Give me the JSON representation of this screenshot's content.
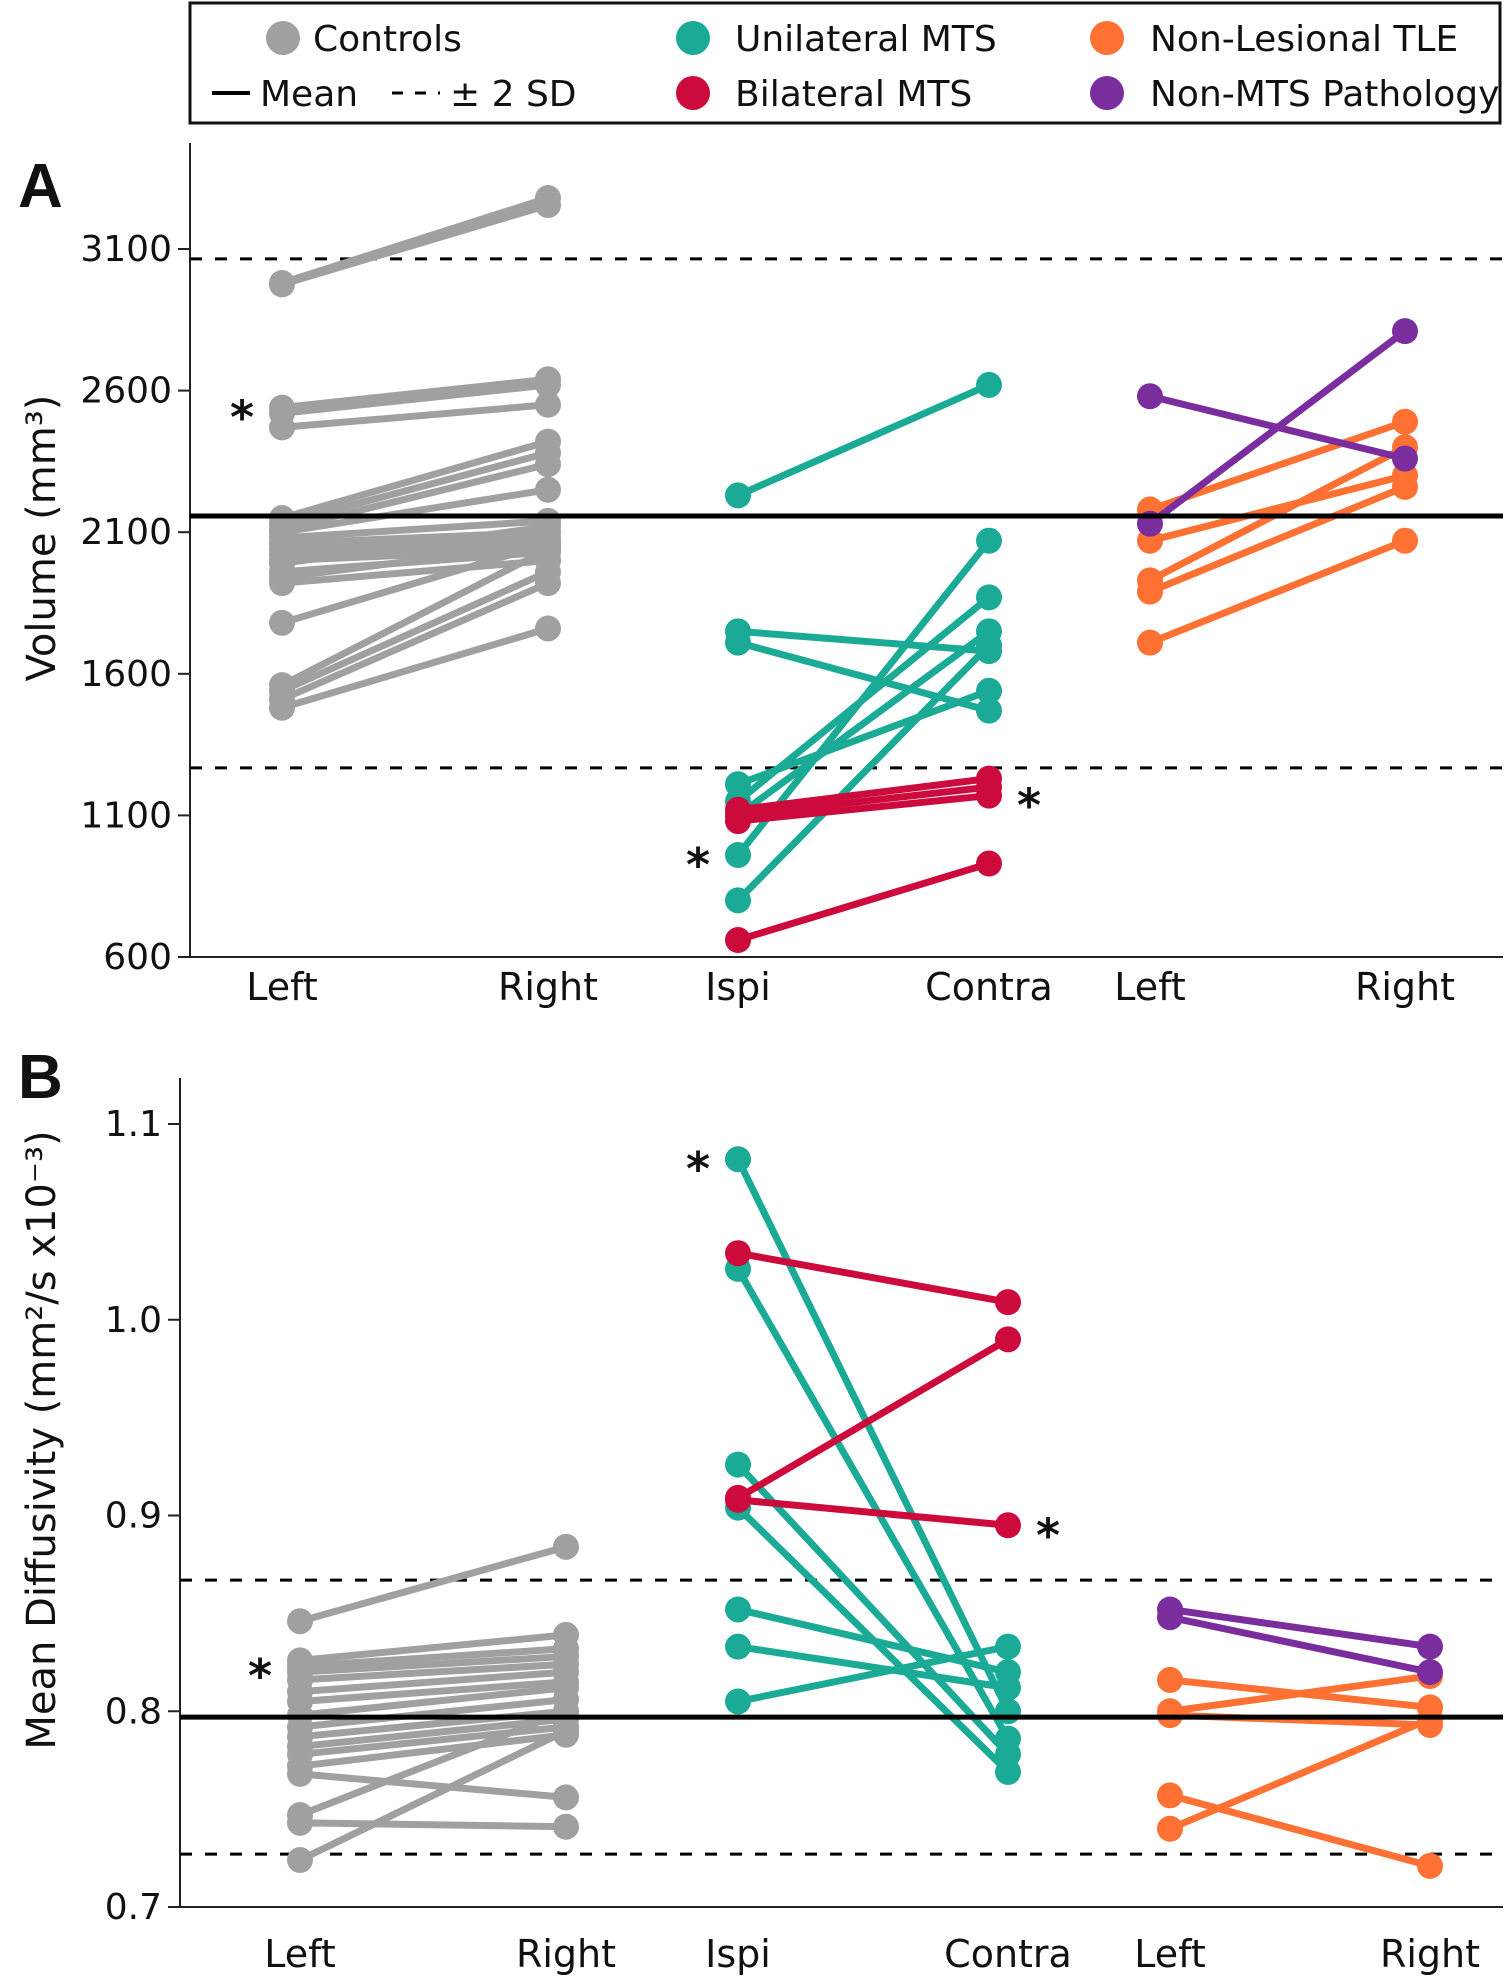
{
  "legend": {
    "items": [
      {
        "key": "controls",
        "label": "Controls",
        "color": "#a0a0a0",
        "symbol": "dot"
      },
      {
        "key": "unilateral",
        "label": "Unilateral MTS",
        "color": "#1aaa96",
        "symbol": "dot"
      },
      {
        "key": "nonlesional",
        "label": "Non-Lesional TLE",
        "color": "#ff7033",
        "symbol": "dot"
      },
      {
        "key": "mean",
        "label": "Mean",
        "color": "#000000",
        "symbol": "solid-line"
      },
      {
        "key": "sd",
        "label": "± 2 SD",
        "color": "#000000",
        "symbol": "dashed-line"
      },
      {
        "key": "bilateral",
        "label": "Bilateral MTS",
        "color": "#cc0a3c",
        "symbol": "dot"
      },
      {
        "key": "nonmts",
        "label": "Non-MTS Pathology",
        "color": "#7a2e9e",
        "symbol": "dot"
      }
    ]
  },
  "chart_data": [
    {
      "panel": "A",
      "type": "line",
      "ylabel": "Volume (mm³)",
      "ylim": [
        600,
        3450
      ],
      "yticks": [
        "600",
        "1100",
        "1600",
        "2100",
        "2600",
        "3100"
      ],
      "categories": [
        "Left",
        "Right",
        "Ispi",
        "Contra",
        "Left",
        "Right"
      ],
      "mean": 2157,
      "sd_lines": [
        3065,
        1268
      ],
      "groups": [
        {
          "name": "Controls",
          "color": "#a0a0a0",
          "x": [
            0,
            1
          ],
          "pairs": [
            [
              2980,
              3280
            ],
            [
              2975,
              3255
            ],
            [
              2540,
              2640
            ],
            [
              2520,
              2620
            ],
            [
              2470,
              2550
            ],
            [
              2150,
              2420
            ],
            [
              2130,
              2380
            ],
            [
              2110,
              2340
            ],
            [
              2100,
              2250
            ],
            [
              2080,
              2140
            ],
            [
              2060,
              2100
            ],
            [
              2040,
              2080
            ],
            [
              2020,
              2060
            ],
            [
              2000,
              2040
            ],
            [
              1990,
              2120
            ],
            [
              1960,
              2030
            ],
            [
              1940,
              2060
            ],
            [
              1920,
              2000
            ],
            [
              1780,
              2060
            ],
            [
              1560,
              2040
            ],
            [
              1540,
              1960
            ],
            [
              1510,
              1920
            ],
            [
              1480,
              1760
            ]
          ],
          "asterisk_at": [
            2540
          ]
        },
        {
          "name": "Unilateral MTS",
          "color": "#1aaa96",
          "x": [
            2,
            3
          ],
          "pairs": [
            [
              2230,
              2620
            ],
            [
              1750,
              1680
            ],
            [
              1710,
              1470
            ],
            [
              1210,
              1540
            ],
            [
              1150,
              1870
            ],
            [
              1100,
              1750
            ],
            [
              960,
              2070
            ],
            [
              800,
              1700
            ]
          ],
          "asterisk_at": [
            960
          ]
        },
        {
          "name": "Bilateral MTS",
          "color": "#cc0a3c",
          "x": [
            2,
            3
          ],
          "pairs": [
            [
              1120,
              1230
            ],
            [
              1100,
              1200
            ],
            [
              1080,
              1170
            ],
            [
              660,
              930
            ]
          ],
          "asterisk_at": [
            1170
          ]
        },
        {
          "name": "Non-Lesional TLE",
          "color": "#ff7033",
          "x": [
            4,
            5
          ],
          "pairs": [
            [
              2180,
              2490
            ],
            [
              2070,
              2300
            ],
            [
              1930,
              2400
            ],
            [
              1890,
              2260
            ],
            [
              1710,
              2070
            ]
          ]
        },
        {
          "name": "Non-MTS Pathology",
          "color": "#7a2e9e",
          "x": [
            4,
            5
          ],
          "pairs": [
            [
              2580,
              2360
            ],
            [
              2130,
              2810
            ]
          ]
        }
      ]
    },
    {
      "panel": "B",
      "type": "line",
      "ylabel": "Mean Diffusivity (mm²/s x10⁻³)",
      "ylim": [
        0.7,
        1.12
      ],
      "yticks": [
        "0.7",
        "0.8",
        "0.9",
        "1.0",
        "1.1"
      ],
      "categories": [
        "Left",
        "Right",
        "Ispi",
        "Contra",
        "Left",
        "Right"
      ],
      "mean": 0.797,
      "sd_lines": [
        0.867,
        0.727
      ],
      "groups": [
        {
          "name": "Controls",
          "color": "#a0a0a0",
          "x": [
            0,
            1
          ],
          "pairs": [
            [
              0.846,
              0.884
            ],
            [
              0.826,
              0.839
            ],
            [
              0.823,
              0.832
            ],
            [
              0.82,
              0.828
            ],
            [
              0.816,
              0.824
            ],
            [
              0.81,
              0.82
            ],
            [
              0.805,
              0.815
            ],
            [
              0.798,
              0.812
            ],
            [
              0.792,
              0.806
            ],
            [
              0.787,
              0.8
            ],
            [
              0.782,
              0.796
            ],
            [
              0.778,
              0.792
            ],
            [
              0.772,
              0.788
            ],
            [
              0.768,
              0.756
            ],
            [
              0.747,
              0.8
            ],
            [
              0.743,
              0.741
            ],
            [
              0.724,
              0.79
            ]
          ],
          "asterisk_at": [
            0.823
          ]
        },
        {
          "name": "Unilateral MTS",
          "color": "#1aaa96",
          "x": [
            2,
            3
          ],
          "pairs": [
            [
              1.082,
              0.8
            ],
            [
              1.026,
              0.786
            ],
            [
              0.926,
              0.778
            ],
            [
              0.904,
              0.769
            ],
            [
              0.852,
              0.82
            ],
            [
              0.833,
              0.812
            ],
            [
              0.805,
              0.833
            ]
          ],
          "asterisk_at": [
            1.082
          ]
        },
        {
          "name": "Bilateral MTS",
          "color": "#cc0a3c",
          "x": [
            2,
            3
          ],
          "pairs": [
            [
              1.034,
              1.009
            ],
            [
              0.909,
              0.99
            ],
            [
              0.908,
              0.895
            ]
          ],
          "asterisk_at": [
            0.895
          ]
        },
        {
          "name": "Non-Lesional TLE",
          "color": "#ff7033",
          "x": [
            4,
            5
          ],
          "pairs": [
            [
              0.816,
              0.802
            ],
            [
              0.8,
              0.818
            ],
            [
              0.798,
              0.793
            ],
            [
              0.757,
              0.721
            ],
            [
              0.74,
              0.796
            ]
          ]
        },
        {
          "name": "Non-MTS Pathology",
          "color": "#7a2e9e",
          "x": [
            4,
            5
          ],
          "pairs": [
            [
              0.852,
              0.833
            ],
            [
              0.848,
              0.82
            ]
          ]
        }
      ]
    }
  ],
  "panels": {
    "A": {
      "letter": "A"
    },
    "B": {
      "letter": "B"
    }
  },
  "asterisk_symbol": "*"
}
